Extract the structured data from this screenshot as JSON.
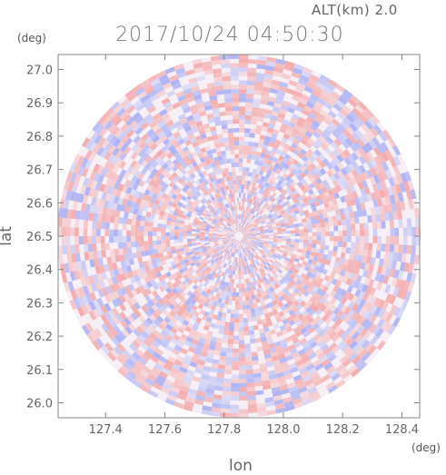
{
  "header": {
    "altitude_label": "ALT(km) 2.0",
    "timestamp": "2017/10/24 04:50:30"
  },
  "axis_units": {
    "y": "(deg)",
    "x": "(deg)"
  },
  "axis_labels": {
    "x": "lon",
    "y": "lat"
  },
  "colors": {
    "positive": "#f4a0a0",
    "negative": "#a0a8f4",
    "frame": "#888888"
  },
  "chart_data": {
    "type": "heatmap",
    "title": "2017/10/24 04:50:30",
    "xlabel": "lon",
    "ylabel": "lat",
    "xlim": [
      127.24,
      128.46
    ],
    "ylim": [
      25.955,
      27.045
    ],
    "x_ticks": [
      "127.4",
      "127.6",
      "127.8",
      "128.0",
      "128.2",
      "128.4"
    ],
    "y_ticks": [
      "26.0",
      "26.1",
      "26.2",
      "26.3",
      "26.4",
      "26.5",
      "26.6",
      "26.7",
      "26.8",
      "26.9",
      "27.0"
    ],
    "radar_center": {
      "lon": 127.85,
      "lat": 26.5
    },
    "radar_range_deg": 0.545,
    "field": "radial velocity (red/blue diverging)",
    "grid": false
  }
}
